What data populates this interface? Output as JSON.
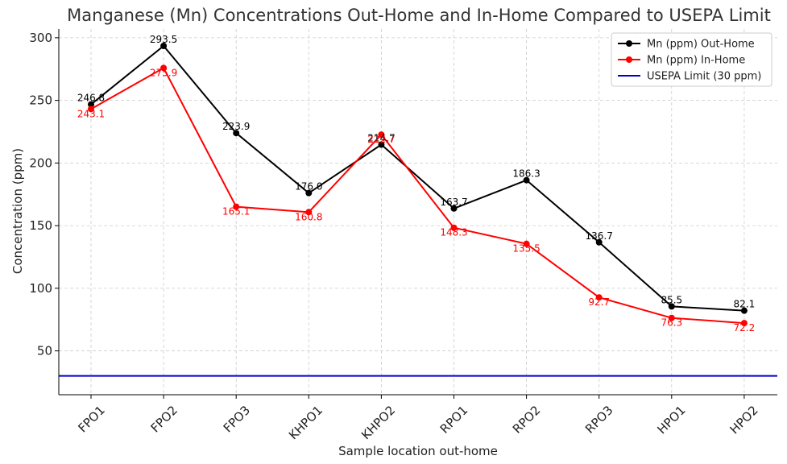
{
  "chart_data": {
    "type": "line",
    "title": "Manganese (Mn) Concentrations Out-Home and In-Home Compared to USEPA Limit",
    "xlabel": "Sample location out-home",
    "ylabel": "Concentration (ppm)",
    "categories": [
      "FPO1",
      "FPO2",
      "FPO3",
      "KHPO1",
      "KHPO2",
      "RPO1",
      "RPO2",
      "RPO3",
      "HPO1",
      "HPO2"
    ],
    "yticks": [
      50,
      100,
      150,
      200,
      250,
      300
    ],
    "ylim": [
      15,
      307
    ],
    "grid": true,
    "legend_position": "top-right",
    "series": [
      {
        "name": "Mn (ppm) Out-Home",
        "color": "#000000",
        "values": [
          246.8,
          293.5,
          223.9,
          176.0,
          214.7,
          163.7,
          186.3,
          136.7,
          85.5,
          82.1
        ],
        "labels": [
          "246.8",
          "293.5",
          "223.9",
          "176.0",
          "214.7",
          "163.7",
          "186.3",
          "136.7",
          "85.5",
          "82.1"
        ]
      },
      {
        "name": "Mn (ppm) In-Home",
        "color": "#ff0000",
        "values": [
          243.1,
          275.9,
          165.1,
          160.8,
          222.7,
          148.3,
          135.5,
          92.7,
          76.3,
          72.2
        ],
        "labels": [
          "243.1",
          "275.9",
          "165.1",
          "160.8",
          "222.7",
          "148.3",
          "135.5",
          "92.7",
          "76.3",
          "72.2"
        ]
      }
    ],
    "reference_line": {
      "name": "USEPA Limit (30 ppm)",
      "value": 30,
      "color": "#0000cc"
    }
  }
}
